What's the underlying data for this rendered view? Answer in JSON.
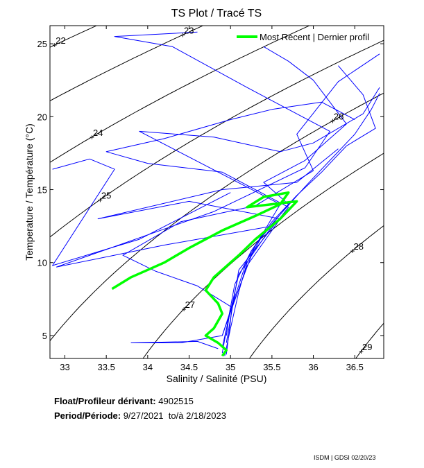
{
  "chart_data": {
    "type": "line",
    "title": "TS Plot / Tracé TS",
    "xlabel": "Salinity / Salinité (PSU)",
    "ylabel": "Temperature / Température (°C)",
    "xlim": [
      32.82,
      36.85
    ],
    "ylim": [
      3.43,
      26.24
    ],
    "xticks": [
      33,
      33.5,
      34,
      34.5,
      35,
      35.5,
      36,
      36.5
    ],
    "xtick_labels": [
      "33",
      "33.5",
      "34",
      "34.5",
      "35",
      "35.5",
      "36",
      "36.5"
    ],
    "yticks": [
      5,
      10,
      15,
      20,
      25
    ],
    "ytick_labels": [
      "5",
      "10",
      "15",
      "20",
      "25"
    ],
    "isopycnals": [
      22,
      23,
      24,
      25,
      26,
      27,
      28,
      29
    ],
    "isopycnal_labels": [
      "22",
      "23",
      "24",
      "25",
      "26",
      "27",
      "28",
      "29"
    ],
    "legend": {
      "label": "Most Recent | Dernier profil",
      "placement": "top-right",
      "color": "#00ff00"
    },
    "series": [
      {
        "name": "profiles",
        "color": "#0000ff",
        "profiles": [
          [
            [
              34.93,
              3.6
            ],
            [
              35.0,
              5.5
            ],
            [
              35.1,
              8
            ],
            [
              35.2,
              10
            ],
            [
              35.4,
              12
            ],
            [
              35.6,
              13.3
            ],
            [
              35.9,
              15.2
            ],
            [
              36.2,
              17
            ],
            [
              36.5,
              18.8
            ],
            [
              36.7,
              20.5
            ],
            [
              36.8,
              21.6
            ]
          ],
          [
            [
              34.9,
              3.8
            ],
            [
              34.97,
              6
            ],
            [
              35.05,
              8.5
            ],
            [
              35.25,
              10.8
            ],
            [
              35.5,
              12.8
            ],
            [
              35.8,
              14.6
            ],
            [
              36.1,
              16.2
            ],
            [
              36.4,
              18
            ],
            [
              36.75,
              19.2
            ],
            [
              36.6,
              21.5
            ],
            [
              36.3,
              23.5
            ]
          ],
          [
            [
              34.95,
              3.7
            ],
            [
              35.02,
              7
            ],
            [
              35.3,
              11.2
            ],
            [
              35.7,
              14
            ],
            [
              35.4,
              15.5
            ],
            [
              35.9,
              17
            ],
            [
              36.4,
              19.5
            ],
            [
              36.0,
              22.5
            ],
            [
              35.7,
              23.8
            ],
            [
              35.4,
              24.8
            ]
          ],
          [
            [
              34.85,
              4.1
            ],
            [
              34.6,
              4.6
            ],
            [
              33.8,
              4.5
            ],
            [
              34.4,
              4.5
            ],
            [
              34.9,
              5
            ],
            [
              35.2,
              9.8
            ],
            [
              35.6,
              13
            ],
            [
              34.5,
              14.2
            ],
            [
              33.4,
              13
            ],
            [
              34.9,
              15
            ],
            [
              35.8,
              15.5
            ],
            [
              36.3,
              17.8
            ]
          ],
          [
            [
              34.9,
              4.2
            ],
            [
              35.1,
              9.2
            ],
            [
              35.5,
              12.5
            ],
            [
              34.2,
              11.2
            ],
            [
              32.9,
              9.7
            ],
            [
              34.8,
              13.5
            ],
            [
              35.9,
              16.5
            ],
            [
              36.2,
              19
            ],
            [
              35.2,
              22
            ],
            [
              34.3,
              24.8
            ],
            [
              33.6,
              25.5
            ],
            [
              34.6,
              25.8
            ]
          ],
          [
            [
              34.95,
              4.5
            ],
            [
              35.1,
              9.5
            ],
            [
              35.7,
              13.8
            ],
            [
              34.9,
              16.2
            ],
            [
              34.0,
              16.8
            ],
            [
              33.5,
              17.6
            ],
            [
              34.2,
              18.5
            ],
            [
              35.0,
              19.8
            ],
            [
              35.5,
              20.5
            ],
            [
              36.1,
              21
            ],
            [
              36.5,
              19.8
            ]
          ],
          [
            [
              34.9,
              5
            ],
            [
              35.2,
              10.2
            ],
            [
              35.6,
              14
            ],
            [
              33.9,
              19
            ],
            [
              34.8,
              18.6
            ],
            [
              35.6,
              17.6
            ],
            [
              36.0,
              18.2
            ],
            [
              36.6,
              20.2
            ],
            [
              36.8,
              22
            ]
          ],
          [
            [
              34.95,
              5
            ],
            [
              35.0,
              7
            ],
            [
              34.6,
              8.4
            ],
            [
              34.1,
              9.4
            ],
            [
              33.7,
              10.5
            ],
            [
              34.4,
              12.8
            ],
            [
              35.3,
              13.9
            ],
            [
              36.0,
              16.3
            ],
            [
              35.8,
              18.8
            ],
            [
              36.3,
              22.4
            ],
            [
              36.8,
              24.3
            ]
          ],
          [
            [
              32.85,
              16.4
            ],
            [
              33.3,
              17.1
            ],
            [
              33.6,
              16.4
            ],
            [
              32.85,
              9.8
            ],
            [
              33.9,
              11.6
            ],
            [
              35.0,
              14.8
            ]
          ]
        ]
      },
      {
        "name": "Most Recent | Dernier profil",
        "color": "#00ff00",
        "profiles": [
          [
            [
              33.57,
              8.2
            ],
            [
              33.8,
              9.0
            ],
            [
              34.0,
              9.5
            ],
            [
              34.2,
              10.0
            ],
            [
              34.5,
              11.0
            ],
            [
              34.9,
              12.2
            ],
            [
              35.3,
              13.2
            ],
            [
              35.6,
              14.0
            ],
            [
              35.7,
              14.8
            ],
            [
              35.4,
              14.5
            ],
            [
              35.2,
              13.8
            ],
            [
              35.8,
              14.2
            ],
            [
              35.6,
              13.0
            ],
            [
              35.3,
              11.6
            ],
            [
              35.1,
              10.5
            ],
            [
              34.8,
              9.0
            ],
            [
              34.7,
              8.1
            ],
            [
              34.85,
              7.2
            ],
            [
              34.9,
              6.5
            ],
            [
              34.8,
              5.5
            ],
            [
              34.7,
              5.0
            ],
            [
              34.85,
              4.5
            ],
            [
              34.95,
              4.0
            ],
            [
              34.9,
              3.6
            ]
          ]
        ]
      }
    ]
  },
  "info": {
    "float_label": "Float/Profileur dérivant:",
    "float_id": "4902515",
    "period_label": "Period/Période:",
    "start_date": "9/27/2021",
    "to_label": "to/à",
    "end_date": "2/18/2023"
  },
  "footer": "ISDM | GDSI  02/20/23"
}
